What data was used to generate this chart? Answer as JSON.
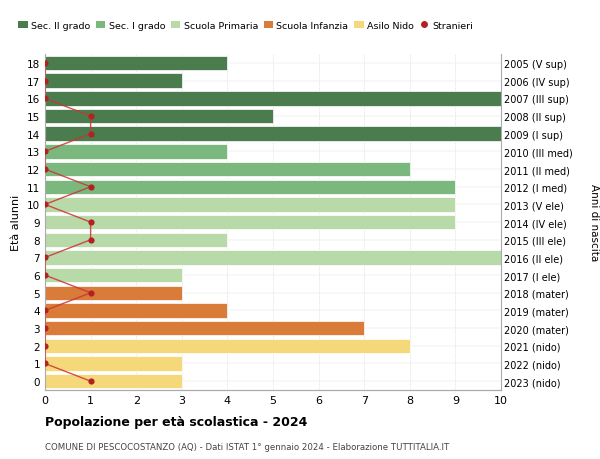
{
  "ages": [
    18,
    17,
    16,
    15,
    14,
    13,
    12,
    11,
    10,
    9,
    8,
    7,
    6,
    5,
    4,
    3,
    2,
    1,
    0
  ],
  "years": [
    "2005 (V sup)",
    "2006 (IV sup)",
    "2007 (III sup)",
    "2008 (II sup)",
    "2009 (I sup)",
    "2010 (III med)",
    "2011 (II med)",
    "2012 (I med)",
    "2013 (V ele)",
    "2014 (IV ele)",
    "2015 (III ele)",
    "2016 (II ele)",
    "2017 (I ele)",
    "2018 (mater)",
    "2019 (mater)",
    "2020 (mater)",
    "2021 (nido)",
    "2022 (nido)",
    "2023 (nido)"
  ],
  "bar_values": [
    4,
    3,
    10,
    5,
    10,
    4,
    8,
    9,
    9,
    9,
    4,
    10,
    3,
    3,
    4,
    7,
    8,
    3,
    3
  ],
  "bar_colors": [
    "#4a7c4e",
    "#4a7c4e",
    "#4a7c4e",
    "#4a7c4e",
    "#4a7c4e",
    "#7ab87e",
    "#7ab87e",
    "#7ab87e",
    "#b8d9a8",
    "#b8d9a8",
    "#b8d9a8",
    "#b8d9a8",
    "#b8d9a8",
    "#d97c3a",
    "#d97c3a",
    "#d97c3a",
    "#f5d87a",
    "#f5d87a",
    "#f5d87a"
  ],
  "stranieri_values": [
    0,
    0,
    0,
    1,
    1,
    0,
    0,
    1,
    0,
    1,
    1,
    0,
    0,
    1,
    0,
    0,
    0,
    0,
    1
  ],
  "legend_labels": [
    "Sec. II grado",
    "Sec. I grado",
    "Scuola Primaria",
    "Scuola Infanzia",
    "Asilo Nido",
    "Stranieri"
  ],
  "legend_colors": [
    "#4a7c4e",
    "#7ab87e",
    "#b8d9a8",
    "#d97c3a",
    "#f5d87a",
    "#b22222"
  ],
  "title": "Popolazione per età scolastica - 2024",
  "subtitle": "COMUNE DI PESCOCOSTANZO (AQ) - Dati ISTAT 1° gennaio 2024 - Elaborazione TUTTITALIA.IT",
  "ylabel_left": "Età alunni",
  "ylabel_right": "Anni di nascita",
  "xlim": [
    0,
    10
  ],
  "bar_height": 0.82,
  "background_color": "#ffffff",
  "grid_color": "#cccccc",
  "stranieri_color": "#b22222",
  "stranieri_line_color": "#cc3333"
}
